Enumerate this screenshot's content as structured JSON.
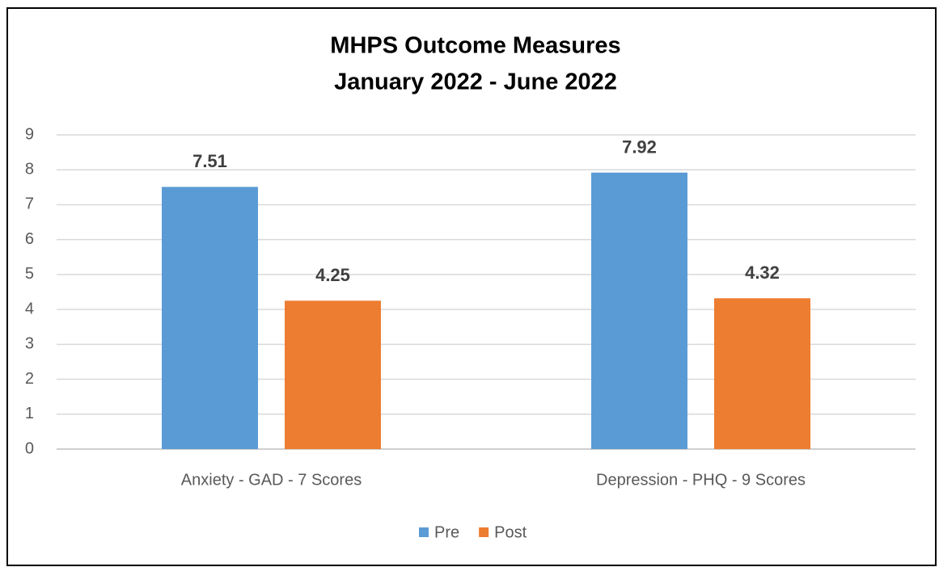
{
  "chart_data": {
    "type": "bar",
    "title": "MHPS Outcome Measures",
    "subtitle": "January 2022 - June 2022",
    "categories": [
      "Anxiety - GAD - 7 Scores",
      "Depression - PHQ - 9 Scores"
    ],
    "series": [
      {
        "name": "Pre",
        "color": "#5b9bd5",
        "values": [
          7.51,
          7.92
        ]
      },
      {
        "name": "Post",
        "color": "#ed7d31",
        "values": [
          4.25,
          4.32
        ]
      }
    ],
    "ylim": [
      0,
      9
    ],
    "yticks": [
      0,
      1,
      2,
      3,
      4,
      5,
      6,
      7,
      8,
      9
    ],
    "grid": true,
    "legend": "bottom"
  }
}
